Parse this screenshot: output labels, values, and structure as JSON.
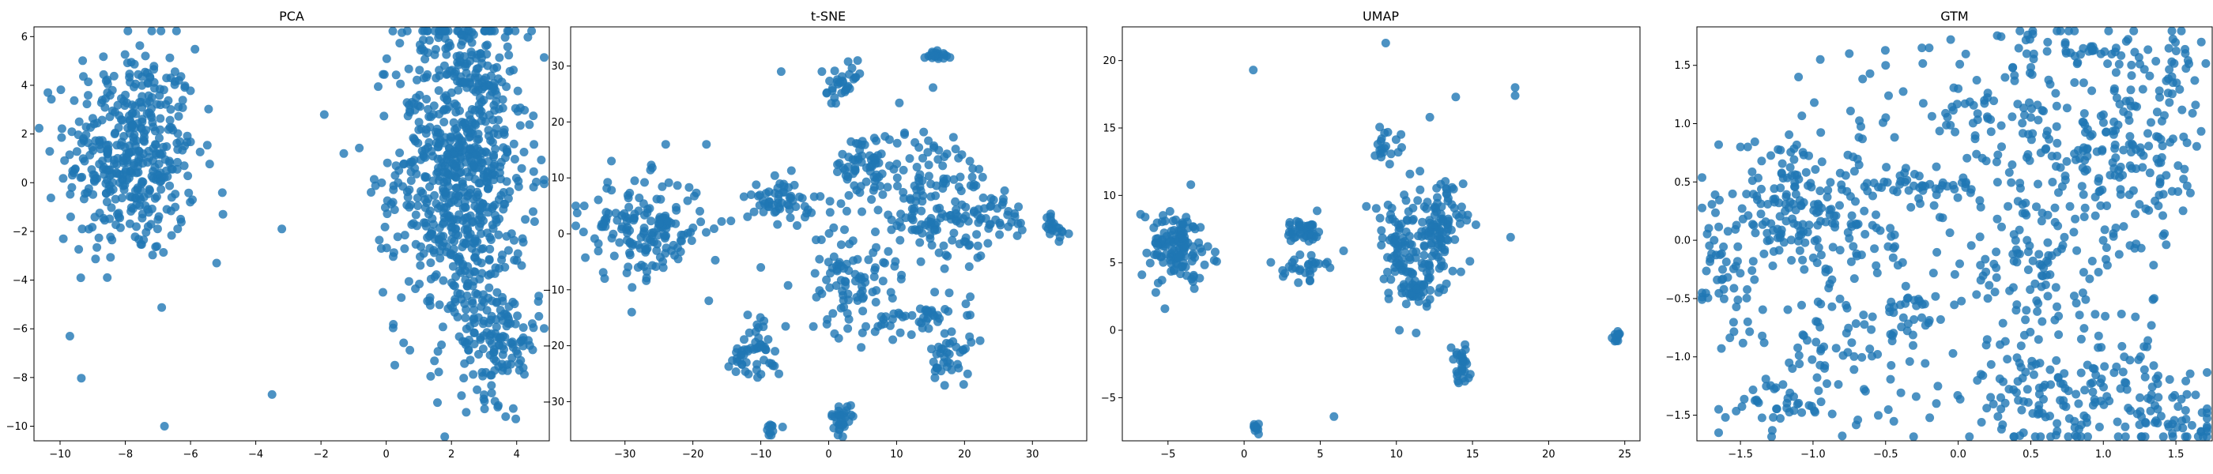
{
  "colors": {
    "point": "#1f77b4",
    "axis": "#000000",
    "background": "#ffffff"
  },
  "chart_data": [
    {
      "type": "scatter",
      "title": "PCA",
      "xlim": [
        -10.8,
        5.0
      ],
      "ylim": [
        -10.6,
        6.4
      ],
      "xticks": [
        -10,
        -8,
        -6,
        -4,
        -2,
        0,
        2,
        4
      ],
      "yticks": [
        -10,
        -8,
        -6,
        -4,
        -2,
        0,
        2,
        4,
        6
      ],
      "xtick_labels": [
        "−10",
        "−8",
        "−6",
        "−4",
        "−2",
        "0",
        "2",
        "4"
      ],
      "ytick_labels": [
        "−10",
        "−8",
        "−6",
        "−4",
        "−2",
        "0",
        "2",
        "4",
        "6"
      ],
      "clusters": [
        {
          "cx": -7.8,
          "cy": 1.2,
          "sx": 1.0,
          "sy": 2.2,
          "n": 420
        },
        {
          "cx": 2.3,
          "cy": 0.6,
          "sx": 1.0,
          "sy": 3.4,
          "n": 780
        },
        {
          "cx": 3.5,
          "cy": -6.5,
          "sx": 0.6,
          "sy": 1.2,
          "n": 120
        }
      ],
      "points": [
        [
          -1.9,
          2.8
        ],
        [
          -1.3,
          1.2
        ],
        [
          -3.2,
          -1.9
        ],
        [
          -3.5,
          -8.7
        ],
        [
          -6.8,
          -10.0
        ],
        [
          -0.1,
          -4.5
        ],
        [
          4.2,
          -7.6
        ],
        [
          -9.7,
          -6.3
        ],
        [
          -9.9,
          -2.3
        ],
        [
          -5.2,
          -3.3
        ]
      ]
    },
    {
      "type": "scatter",
      "title": "t-SNE",
      "xlim": [
        -38,
        38
      ],
      "ylim": [
        -37,
        37
      ],
      "xticks": [
        -30,
        -20,
        -10,
        0,
        10,
        20,
        30
      ],
      "yticks": [
        -30,
        -20,
        -10,
        0,
        10,
        20,
        30
      ],
      "xtick_labels": [
        "−30",
        "−20",
        "−10",
        "0",
        "10",
        "20",
        "30"
      ],
      "ytick_labels": [
        "−30",
        "−20",
        "−10",
        "0",
        "10",
        "20",
        "30"
      ],
      "clusters": [
        {
          "cx": -27,
          "cy": 1,
          "sx": 4.5,
          "sy": 4.5,
          "n": 160
        },
        {
          "cx": -7,
          "cy": 6,
          "sx": 2.5,
          "sy": 2.0,
          "n": 60
        },
        {
          "cx": 2,
          "cy": 26,
          "sx": 1.5,
          "sy": 2.0,
          "n": 30
        },
        {
          "cx": 5,
          "cy": 12,
          "sx": 2.0,
          "sy": 3.0,
          "n": 60
        },
        {
          "cx": 3,
          "cy": -8,
          "sx": 3.0,
          "sy": 5.0,
          "n": 90
        },
        {
          "cx": 15,
          "cy": 6,
          "sx": 4.0,
          "sy": 7.0,
          "n": 160
        },
        {
          "cx": 13,
          "cy": -15,
          "sx": 3.0,
          "sy": 1.5,
          "n": 40
        },
        {
          "cx": 18,
          "cy": -22,
          "sx": 1.5,
          "sy": 2.5,
          "n": 40
        },
        {
          "cx": 16,
          "cy": 32,
          "sx": 0.8,
          "sy": 0.6,
          "n": 20
        },
        {
          "cx": 2,
          "cy": -33,
          "sx": 0.8,
          "sy": 1.2,
          "n": 30
        },
        {
          "cx": -10,
          "cy": -20,
          "sx": 1.5,
          "sy": 3.0,
          "n": 40
        },
        {
          "cx": 33,
          "cy": 1,
          "sx": 1.2,
          "sy": 1.5,
          "n": 20
        },
        {
          "cx": -13,
          "cy": -22,
          "sx": 1.0,
          "sy": 1.0,
          "n": 15
        },
        {
          "cx": -9,
          "cy": -35,
          "sx": 0.8,
          "sy": 0.8,
          "n": 10
        },
        {
          "cx": 24,
          "cy": 3,
          "sx": 3.0,
          "sy": 3.0,
          "n": 40
        }
      ],
      "points": [
        [
          -36,
          5
        ],
        [
          -32,
          13
        ],
        [
          -24,
          16
        ],
        [
          -18,
          16
        ],
        [
          -7,
          29
        ],
        [
          -1,
          29
        ],
        [
          4,
          28
        ],
        [
          -10,
          -6
        ],
        [
          -29,
          -14
        ],
        [
          -38,
          5
        ],
        [
          -33,
          -8
        ]
      ]
    },
    {
      "type": "scatter",
      "title": "UMAP",
      "xlim": [
        -8.0,
        26.0
      ],
      "ylim": [
        -8.2,
        22.5
      ],
      "xticks": [
        -5,
        0,
        5,
        10,
        15,
        20,
        25
      ],
      "yticks": [
        -5,
        0,
        5,
        10,
        15,
        20
      ],
      "xtick_labels": [
        "−5",
        "0",
        "5",
        "10",
        "15",
        "20",
        "25"
      ],
      "ytick_labels": [
        "−5",
        "0",
        "5",
        "10",
        "15",
        "20"
      ],
      "clusters": [
        {
          "cx": -4.3,
          "cy": 6.2,
          "sx": 0.9,
          "sy": 1.2,
          "n": 120
        },
        {
          "cx": 4.0,
          "cy": 7.4,
          "sx": 0.6,
          "sy": 0.5,
          "n": 40
        },
        {
          "cx": 4.0,
          "cy": 4.8,
          "sx": 0.7,
          "sy": 0.5,
          "n": 30
        },
        {
          "cx": 10.2,
          "cy": 6.0,
          "sx": 1.0,
          "sy": 2.0,
          "n": 80
        },
        {
          "cx": 12.8,
          "cy": 7.5,
          "sx": 0.8,
          "sy": 1.8,
          "n": 110
        },
        {
          "cx": 11.5,
          "cy": 3.0,
          "sx": 0.8,
          "sy": 0.6,
          "n": 40
        },
        {
          "cx": 14.2,
          "cy": -2.7,
          "sx": 0.3,
          "sy": 0.8,
          "n": 30
        },
        {
          "cx": 9.3,
          "cy": 13.8,
          "sx": 0.5,
          "sy": 0.6,
          "n": 20
        },
        {
          "cx": 24.5,
          "cy": -0.4,
          "sx": 0.15,
          "sy": 0.2,
          "n": 12
        },
        {
          "cx": 0.8,
          "cy": -7.3,
          "sx": 0.2,
          "sy": 0.2,
          "n": 10
        }
      ],
      "points": [
        [
          -6.8,
          8.6
        ],
        [
          -6.5,
          8.4
        ],
        [
          -5.2,
          1.6
        ],
        [
          -5.8,
          2.8
        ],
        [
          -3.5,
          10.8
        ],
        [
          0.6,
          19.3
        ],
        [
          9.3,
          21.3
        ],
        [
          12.2,
          15.8
        ],
        [
          13.9,
          17.3
        ],
        [
          17.8,
          18.0
        ],
        [
          17.8,
          17.4
        ],
        [
          17.5,
          6.9
        ],
        [
          5.9,
          -6.4
        ],
        [
          10.2,
          0.0
        ],
        [
          11.3,
          -0.2
        ],
        [
          -1.9,
          5.8
        ],
        [
          -1.8,
          5.1
        ],
        [
          3.0,
          8.0
        ]
      ]
    },
    {
      "type": "scatter",
      "title": "GTM",
      "xlim": [
        -1.8,
        1.75
      ],
      "ylim": [
        -1.72,
        1.83
      ],
      "xticks": [
        -1.5,
        -1.0,
        -0.5,
        0.0,
        0.5,
        1.0,
        1.5
      ],
      "yticks": [
        -1.5,
        -1.0,
        -0.5,
        0.0,
        0.5,
        1.0,
        1.5
      ],
      "xtick_labels": [
        "−1.5",
        "−1.0",
        "−0.5",
        "0.0",
        "0.5",
        "1.0",
        "1.5"
      ],
      "ytick_labels": [
        "−1.5",
        "−1.0",
        "−0.5",
        "0.0",
        "0.5",
        "1.0",
        "1.5"
      ],
      "clusters": [
        {
          "cx": -1.15,
          "cy": 0.3,
          "sx": 0.25,
          "sy": 0.3,
          "n": 130
        },
        {
          "cx": -0.7,
          "cy": 0.1,
          "sx": 0.25,
          "sy": 0.5,
          "n": 110
        },
        {
          "cx": 0.55,
          "cy": 0.8,
          "sx": 0.35,
          "sy": 0.5,
          "n": 170
        },
        {
          "cx": 1.25,
          "cy": 0.8,
          "sx": 0.25,
          "sy": 0.5,
          "n": 150
        },
        {
          "cx": 0.8,
          "cy": -1.35,
          "sx": 0.45,
          "sy": 0.25,
          "n": 180
        },
        {
          "cx": 0.5,
          "cy": -0.3,
          "sx": 0.35,
          "sy": 0.3,
          "n": 100
        },
        {
          "cx": -1.6,
          "cy": -0.2,
          "sx": 0.1,
          "sy": 0.35,
          "n": 50
        },
        {
          "cx": -0.9,
          "cy": -1.0,
          "sx": 0.3,
          "sy": 0.3,
          "n": 60
        },
        {
          "cx": -1.2,
          "cy": -1.45,
          "sx": 0.2,
          "sy": 0.1,
          "n": 30
        },
        {
          "cx": 1.5,
          "cy": -1.55,
          "sx": 0.15,
          "sy": 0.1,
          "n": 30
        },
        {
          "cx": -0.2,
          "cy": 0.45,
          "sx": 0.15,
          "sy": 0.05,
          "n": 30
        },
        {
          "cx": 1.55,
          "cy": 1.55,
          "sx": 0.08,
          "sy": 0.1,
          "n": 15
        },
        {
          "cx": 0.85,
          "cy": 1.62,
          "sx": 0.15,
          "sy": 0.04,
          "n": 20
        },
        {
          "cx": -0.3,
          "cy": -0.65,
          "sx": 0.1,
          "sy": 0.1,
          "n": 20
        },
        {
          "cx": 0.0,
          "cy": 1.1,
          "sx": 0.1,
          "sy": 0.1,
          "n": 15
        }
      ],
      "points": [
        [
          -1.65,
          -1.65
        ],
        [
          -1.65,
          -1.45
        ],
        [
          -1.65,
          0.82
        ],
        [
          -1.5,
          0.8
        ],
        [
          -1.45,
          0.8
        ],
        [
          -0.75,
          1.6
        ],
        [
          -0.95,
          1.55
        ],
        [
          -1.1,
          1.4
        ],
        [
          -0.5,
          1.5
        ],
        [
          -0.25,
          1.65
        ],
        [
          -0.2,
          1.65
        ],
        [
          0.0,
          1.3
        ],
        [
          -1.35,
          -0.82
        ],
        [
          -1.45,
          -0.7
        ],
        [
          0.45,
          -1.65
        ],
        [
          -0.15,
          -1.4
        ],
        [
          -0.35,
          -0.5
        ]
      ]
    }
  ]
}
